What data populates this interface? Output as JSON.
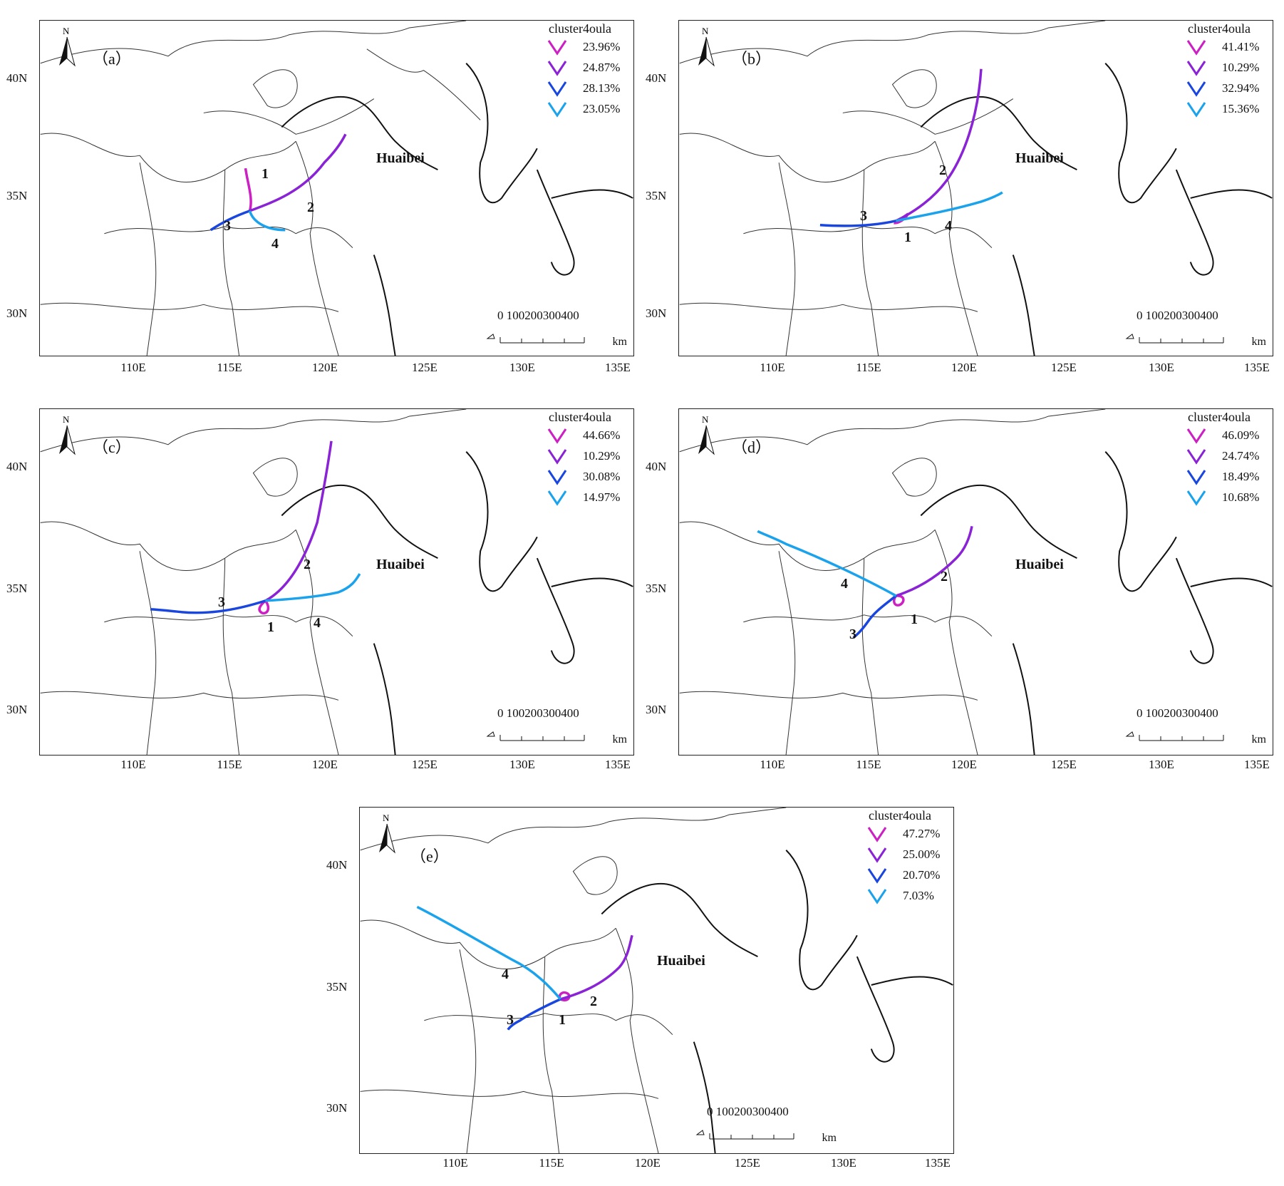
{
  "legend_title": "cluster4oula",
  "legend_colors": [
    "#cc1fc4",
    "#8a22d6",
    "#1a46e0",
    "#1aa3ec"
  ],
  "city_label": "Huaibei",
  "north_label": "N",
  "scale": {
    "numbers": "0  100200300400",
    "unit": "km"
  },
  "axis": {
    "x_ticks": [
      "110E",
      "115E",
      "120E",
      "125E",
      "130E",
      "135E"
    ],
    "y_ticks": [
      "40N",
      "35N",
      "30N"
    ]
  },
  "panels": [
    {
      "id": "a",
      "label": "（a）",
      "percents": [
        "23.96%",
        "24.87%",
        "28.13%",
        "23.05%"
      ],
      "track_labels": [
        "1",
        "2",
        "3",
        "4"
      ]
    },
    {
      "id": "b",
      "label": "（b）",
      "percents": [
        "41.41%",
        "10.29%",
        "32.94%",
        "15.36%"
      ],
      "track_labels": [
        "1",
        "2",
        "3",
        "4"
      ]
    },
    {
      "id": "c",
      "label": "（c）",
      "percents": [
        "44.66%",
        "10.29%",
        "30.08%",
        "14.97%"
      ],
      "track_labels": [
        "1",
        "2",
        "3",
        "4"
      ]
    },
    {
      "id": "d",
      "label": "（d）",
      "percents": [
        "46.09%",
        "24.74%",
        "18.49%",
        "10.68%"
      ],
      "track_labels": [
        "1",
        "2",
        "3",
        "4"
      ]
    },
    {
      "id": "e",
      "label": "（e）",
      "percents": [
        "47.27%",
        "25.00%",
        "20.70%",
        "7.03%"
      ],
      "track_labels": [
        "1",
        "2",
        "3",
        "4"
      ]
    }
  ]
}
